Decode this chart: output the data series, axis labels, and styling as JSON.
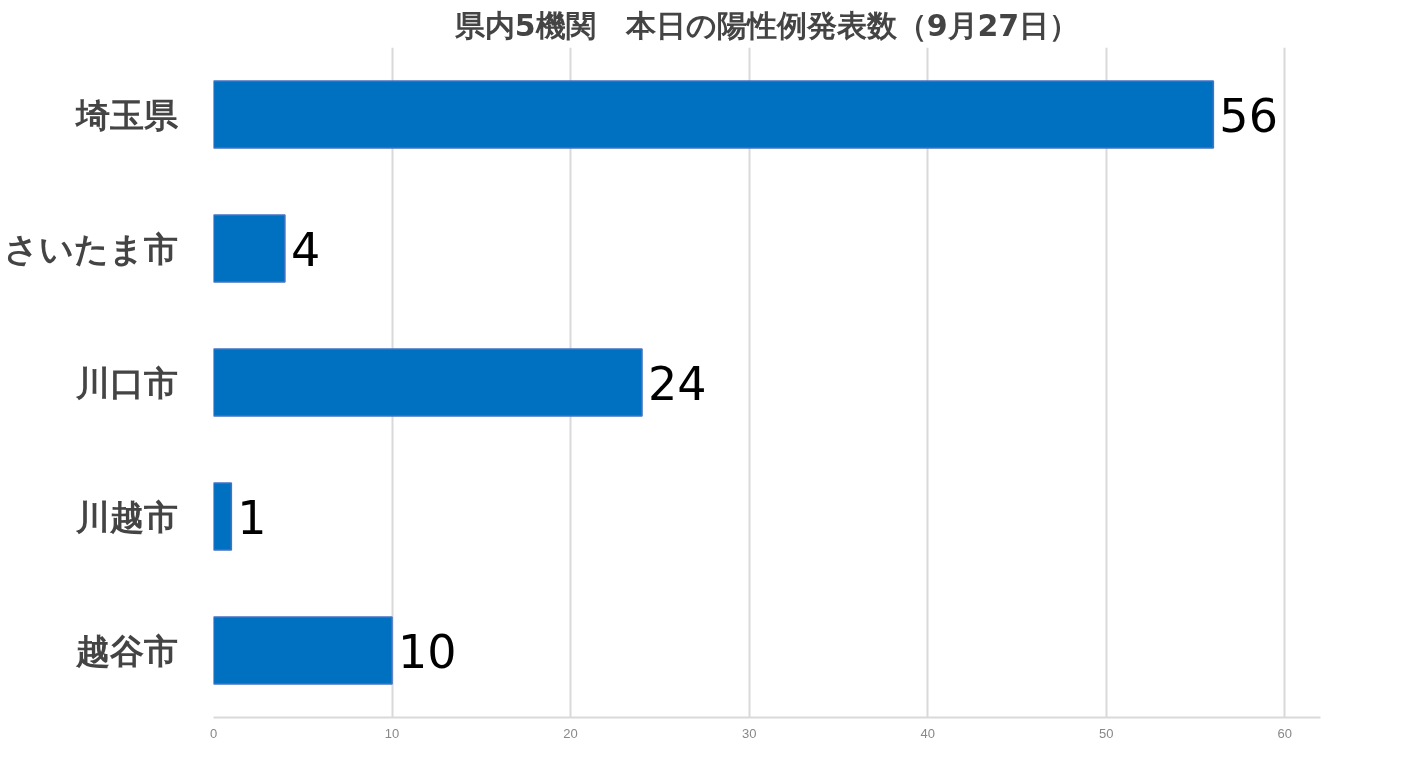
{
  "chart_data": {
    "type": "bar",
    "orientation": "horizontal",
    "title": "県内5機関　本日の陽性例発表数（9月27日）",
    "categories": [
      "埼玉県",
      "さいたま市",
      "川口市",
      "川越市",
      "越谷市"
    ],
    "values": [
      56,
      4,
      24,
      1,
      10
    ],
    "color": "#0070c0",
    "xlim": [
      0,
      62
    ],
    "xticks": [
      0,
      10,
      20,
      30,
      40,
      50,
      60
    ],
    "grid": "x",
    "data_labels": true
  }
}
